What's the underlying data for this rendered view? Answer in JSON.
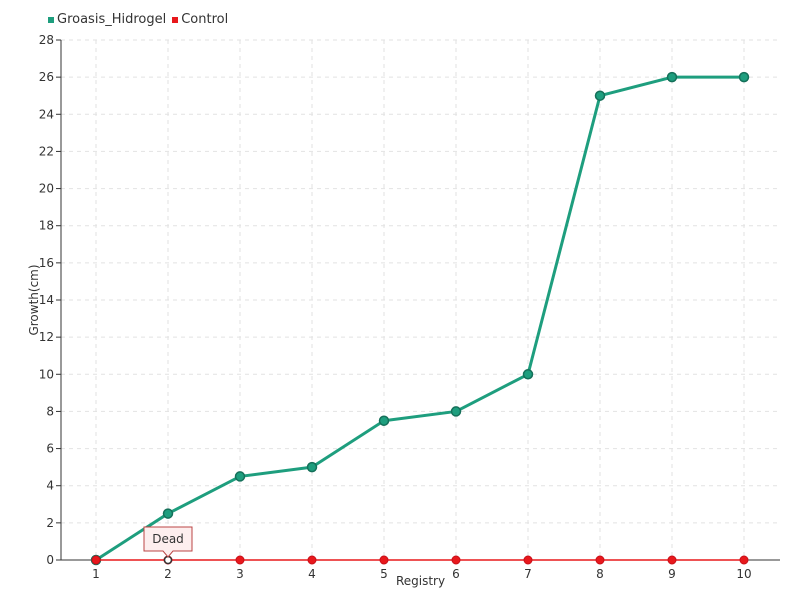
{
  "chart_data": {
    "type": "line",
    "x": [
      1,
      2,
      3,
      4,
      5,
      6,
      7,
      8,
      9,
      10
    ],
    "series": [
      {
        "name": "Groasis_Hidrogel",
        "color": "#1e9e7e",
        "values": [
          0,
          2.5,
          4.5,
          5,
          7.5,
          8,
          10,
          25,
          26,
          26
        ]
      },
      {
        "name": "Control",
        "color": "#e8181c",
        "values": [
          0,
          0,
          0,
          0,
          0,
          0,
          0,
          0,
          0,
          0
        ]
      }
    ],
    "xlabel": "Registry",
    "ylabel": "Growth(cm)",
    "ylim": [
      0,
      28
    ],
    "yticks": [
      0,
      2,
      4,
      6,
      8,
      10,
      12,
      14,
      16,
      18,
      20,
      22,
      24,
      26,
      28
    ],
    "grid": true,
    "legend": "top-left",
    "annotation": {
      "text": "Dead",
      "series": "Control",
      "x": 2
    }
  }
}
